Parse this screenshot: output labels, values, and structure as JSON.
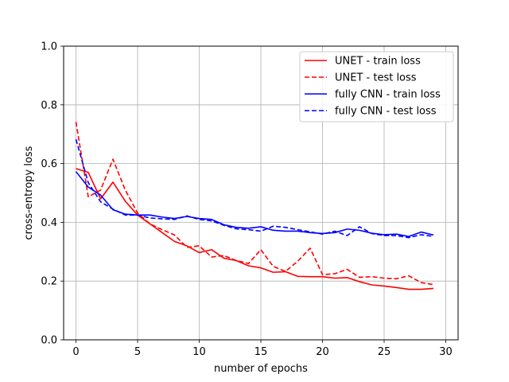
{
  "chart_data": {
    "type": "line",
    "title": "",
    "xlabel": "number of epochs",
    "ylabel": "cross-entropy loss",
    "xlim": [
      -1,
      31
    ],
    "ylim": [
      0.0,
      1.0
    ],
    "xticks": [
      0,
      5,
      10,
      15,
      20,
      25,
      30
    ],
    "yticks": [
      0.0,
      0.2,
      0.4,
      0.6,
      0.8,
      1.0
    ],
    "xtick_labels": [
      "0",
      "5",
      "10",
      "15",
      "20",
      "25",
      "30"
    ],
    "ytick_labels": [
      "0.0",
      "0.2",
      "0.4",
      "0.6",
      "0.8",
      "1.0"
    ],
    "grid": true,
    "legend_position": "top-right",
    "x": [
      0,
      1,
      2,
      3,
      4,
      5,
      6,
      7,
      8,
      9,
      10,
      11,
      12,
      13,
      14,
      15,
      16,
      17,
      18,
      19,
      20,
      21,
      22,
      23,
      24,
      25,
      26,
      27,
      28,
      29
    ],
    "series": [
      {
        "name": "UNET - train loss",
        "color": "#ff0000",
        "dash": "solid",
        "values": [
          0.583,
          0.57,
          0.48,
          0.537,
          0.472,
          0.425,
          0.395,
          0.365,
          0.335,
          0.32,
          0.297,
          0.307,
          0.278,
          0.27,
          0.252,
          0.245,
          0.23,
          0.232,
          0.216,
          0.215,
          0.215,
          0.21,
          0.212,
          0.198,
          0.187,
          0.183,
          0.178,
          0.172,
          0.172,
          0.175
        ]
      },
      {
        "name": "UNET - test loss",
        "color": "#ff0000",
        "dash": "dashed",
        "values": [
          0.742,
          0.487,
          0.51,
          0.615,
          0.51,
          0.432,
          0.395,
          0.375,
          0.357,
          0.315,
          0.32,
          0.282,
          0.287,
          0.27,
          0.26,
          0.307,
          0.25,
          0.233,
          0.268,
          0.312,
          0.222,
          0.225,
          0.24,
          0.213,
          0.215,
          0.21,
          0.208,
          0.218,
          0.195,
          0.188
        ]
      },
      {
        "name": "fully CNN - train loss",
        "color": "#0000ff",
        "dash": "solid",
        "values": [
          0.573,
          0.52,
          0.493,
          0.443,
          0.428,
          0.425,
          0.425,
          0.418,
          0.413,
          0.42,
          0.413,
          0.41,
          0.392,
          0.383,
          0.38,
          0.385,
          0.373,
          0.37,
          0.37,
          0.365,
          0.362,
          0.365,
          0.377,
          0.373,
          0.363,
          0.358,
          0.36,
          0.352,
          0.367,
          0.357
        ]
      },
      {
        "name": "fully CNN - test loss",
        "color": "#0000ff",
        "dash": "dashed",
        "values": [
          0.683,
          0.535,
          0.47,
          0.445,
          0.425,
          0.425,
          0.415,
          0.412,
          0.41,
          0.422,
          0.41,
          0.405,
          0.39,
          0.378,
          0.375,
          0.37,
          0.387,
          0.383,
          0.375,
          0.368,
          0.36,
          0.37,
          0.355,
          0.385,
          0.362,
          0.355,
          0.355,
          0.348,
          0.358,
          0.352
        ]
      }
    ]
  }
}
